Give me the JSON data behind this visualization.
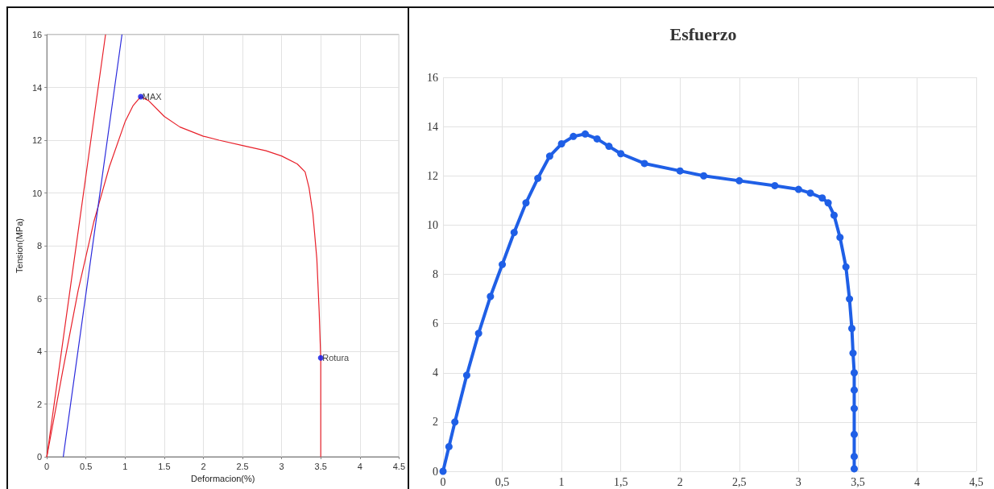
{
  "chart_data": [
    {
      "type": "line",
      "xlabel": "Deformacion(%)",
      "ylabel": "Tension(MPa)",
      "xlim": [
        0,
        4.5
      ],
      "ylim": [
        0,
        16
      ],
      "xticks": [
        0,
        0.5,
        1,
        1.5,
        2,
        2.5,
        3,
        3.5,
        4,
        4.5
      ],
      "yticks": [
        0,
        2,
        4,
        6,
        8,
        10,
        12,
        14,
        16
      ],
      "grid": true,
      "marker": "none",
      "line_style": "solid",
      "series": [
        {
          "color": "#e8202a",
          "x": [
            0,
            0.2,
            0.4,
            0.6,
            0.8,
            1.0,
            1.1,
            1.2,
            1.3,
            1.5,
            1.7,
            2.0,
            2.2,
            2.5,
            2.8,
            3.0,
            3.2,
            3.3,
            3.35,
            3.4,
            3.45,
            3.48,
            3.5,
            3.5
          ],
          "values": [
            0,
            3.2,
            6.3,
            8.9,
            11,
            12.7,
            13.3,
            13.65,
            13.5,
            12.9,
            12.5,
            12.15,
            12.0,
            11.8,
            11.6,
            11.4,
            11.1,
            10.8,
            10.2,
            9.2,
            7.5,
            5.5,
            3.7,
            0
          ]
        },
        {
          "color": "#e8202a",
          "x": [
            0,
            0.75
          ],
          "values": [
            0,
            16
          ]
        },
        {
          "color": "#2b2bdc",
          "x": [
            0.21,
            0.96
          ],
          "values": [
            0,
            16
          ]
        },
        {
          "type": "scatter",
          "color": "#0a14e6",
          "marker": "circle",
          "x": [
            1.2,
            3.5
          ],
          "values": [
            13.65,
            3.75
          ]
        }
      ],
      "annotations": [
        {
          "text": "MAX",
          "x": 1.2,
          "y": 13.65
        },
        {
          "text": "Rotura",
          "x": 3.5,
          "y": 3.75
        }
      ]
    },
    {
      "type": "line",
      "title": "Esfuerzo",
      "xlim": [
        0,
        4.5
      ],
      "ylim": [
        0,
        16
      ],
      "xticks": [
        0,
        {
          "value": 0.5,
          "label": "0,5"
        },
        1,
        {
          "value": 1.5,
          "label": "1,5"
        },
        2,
        {
          "value": 2.5,
          "label": "2,5"
        },
        3,
        {
          "value": 3.5,
          "label": "3,5"
        },
        4,
        {
          "value": 4.5,
          "label": "4,5"
        }
      ],
      "yticks": [
        0,
        2,
        4,
        6,
        8,
        10,
        12,
        14,
        16
      ],
      "grid": true,
      "marker": "circle",
      "line_style": "solid",
      "series": [
        {
          "color": "#1f5fe6",
          "x": [
            0,
            0.05,
            0.1,
            0.2,
            0.3,
            0.4,
            0.5,
            0.6,
            0.7,
            0.8,
            0.9,
            1.0,
            1.1,
            1.2,
            1.3,
            1.4,
            1.5,
            1.7,
            2.0,
            2.2,
            2.5,
            2.8,
            3.0,
            3.1,
            3.2,
            3.25,
            3.3,
            3.35,
            3.4,
            3.43,
            3.45,
            3.46,
            3.47,
            3.47,
            3.47,
            3.47,
            3.47,
            3.47
          ],
          "values": [
            0,
            1.0,
            2.0,
            3.9,
            5.6,
            7.1,
            8.4,
            9.7,
            10.9,
            11.9,
            12.8,
            13.3,
            13.6,
            13.7,
            13.5,
            13.2,
            12.9,
            12.5,
            12.2,
            12.0,
            11.8,
            11.6,
            11.45,
            11.3,
            11.1,
            10.9,
            10.4,
            9.5,
            8.3,
            7.0,
            5.8,
            4.8,
            4.0,
            3.3,
            2.55,
            1.5,
            0.6,
            0.1
          ]
        }
      ]
    }
  ]
}
